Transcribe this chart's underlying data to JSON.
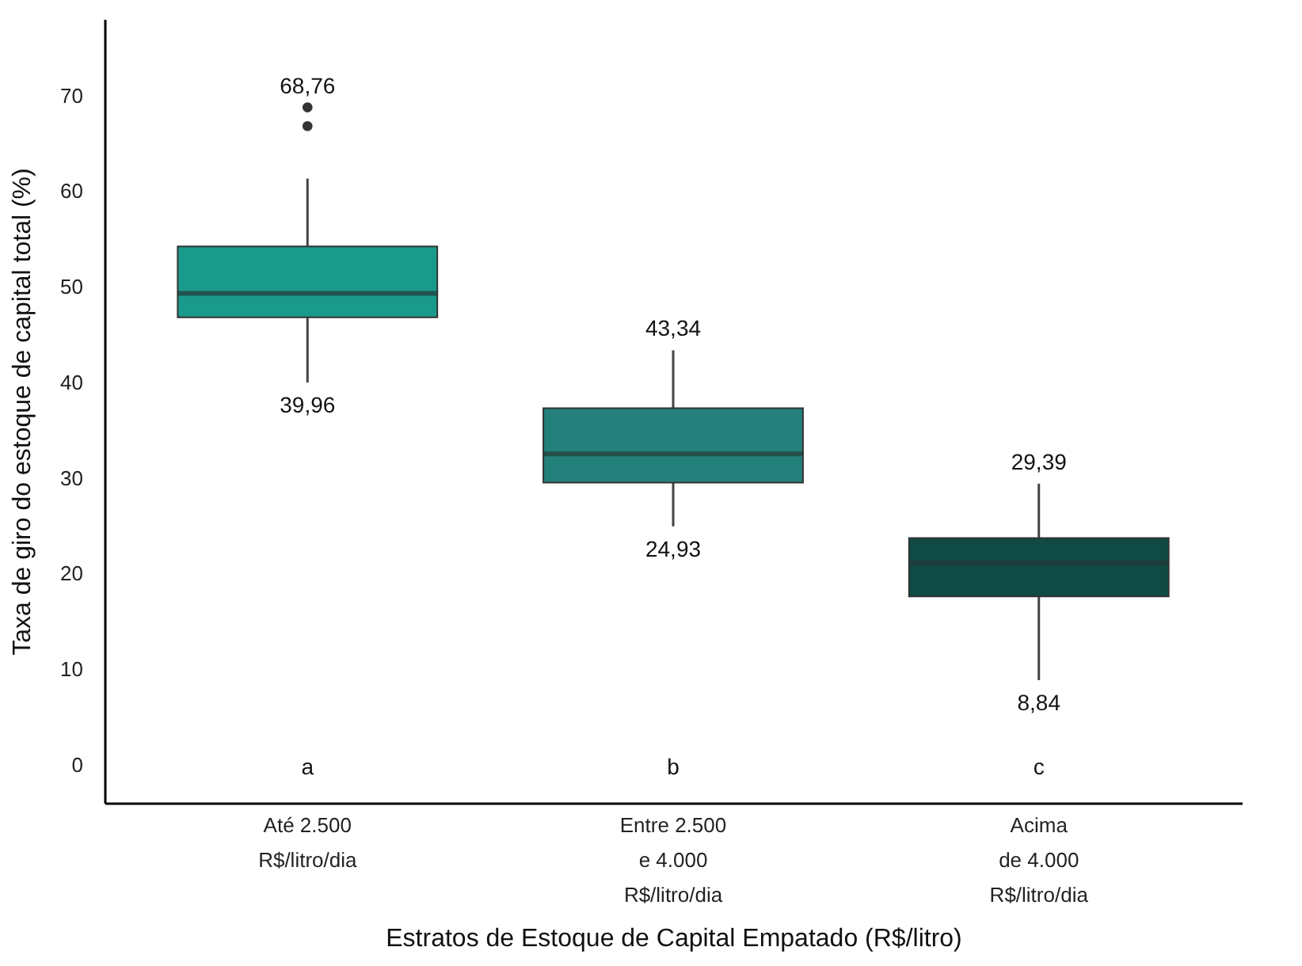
{
  "chart_data": {
    "type": "box",
    "xlabel": "Estratos de Estoque de Capital Empatado (R$/litro)",
    "ylabel": "Taxa de giro do estoque de capital total (%)",
    "categories": [
      "Até 2.500\nR$/litro/dia",
      "Entre 2.500\ne 4.000\nR$/litro/dia",
      "Acima\nde 4.000\nR$/litro/dia"
    ],
    "colors": [
      "#1a9a8a",
      "#23807a",
      "#0f4a45"
    ],
    "boxes": [
      {
        "low": 39.96,
        "q1": 46.8,
        "median": 49.3,
        "q3": 54.2,
        "high": 61.3,
        "outliers": [
          68.76,
          66.8
        ]
      },
      {
        "low": 24.93,
        "q1": 29.5,
        "median": 32.5,
        "q3": 37.3,
        "high": 43.34
      },
      {
        "low": 8.84,
        "q1": 17.6,
        "median": 21.1,
        "q3": 23.7,
        "high": 29.39
      }
    ],
    "ylim": [
      -4,
      78
    ],
    "yticks": [
      0,
      10,
      20,
      30,
      40,
      50,
      60,
      70
    ],
    "grid": false,
    "annotations": [
      "68,76",
      {
        "text": "39,96",
        "x": "Até 2.500\nR$/litro/dia",
        "y": 39.96
      },
      {
        "text": "43,34",
        "x": "Entre 2.500\ne 4.000\nR$/litro/dia",
        "y": 43.34
      },
      {
        "text": "24,93",
        "x": "Entre 2.500\ne 4.000\nR$/litro/dia",
        "y": 24.93
      },
      {
        "text": "29,39",
        "x": "Acima\nde 4.000\nR$/litro/dia",
        "y": 29.39
      },
      {
        "text": "8,84",
        "x": "Acima\nde 4.000\nR$/litro/dia",
        "y": 8.84
      },
      "a",
      "b",
      "c"
    ]
  }
}
